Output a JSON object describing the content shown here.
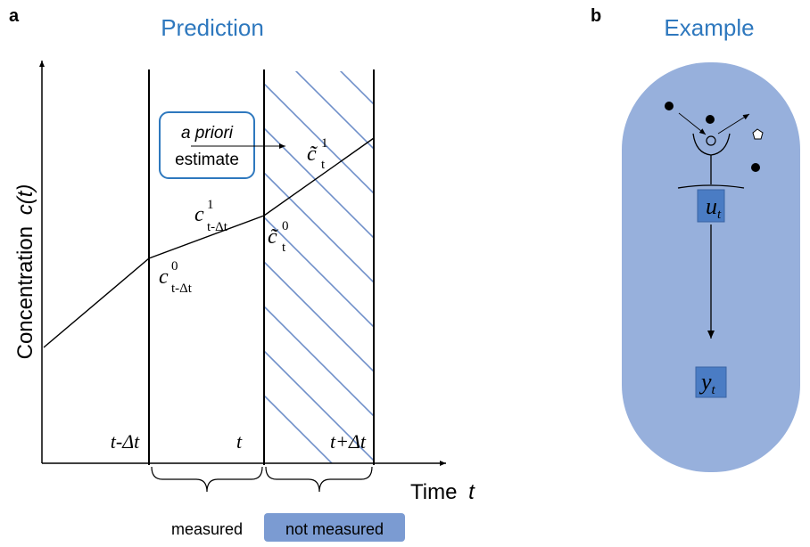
{
  "panel_a": {
    "label": "a",
    "title": "Prediction",
    "y_axis_label": "Concentration",
    "y_axis_symbol": "c(t)",
    "x_axis_label": "Time",
    "x_axis_symbol": "t",
    "ticks": {
      "t_minus": "t-Δt",
      "t": "t",
      "t_plus": "t+Δt"
    },
    "callout": {
      "line1": "a priori",
      "line2": "estimate"
    },
    "points": {
      "c0_prev": {
        "base": "c",
        "sup": "0",
        "sub": "t-Δt"
      },
      "c1_prev": {
        "base": "c",
        "sup": "1",
        "sub": "t-Δt"
      },
      "c0_tilde": {
        "base": "c̃",
        "sup": "0",
        "sub": "t"
      },
      "c1_tilde": {
        "base": "c̃",
        "sup": "1",
        "sub": "t"
      }
    },
    "braces": {
      "measured": "measured",
      "not_measured": "not measured"
    },
    "colors": {
      "title": "#2e78be",
      "hatch": "#6f8fc9",
      "callout_border": "#2e78be",
      "badge": "#7b9bd2"
    }
  },
  "panel_b": {
    "label": "b",
    "title": "Example",
    "input_label": {
      "base": "u",
      "sub": "t"
    },
    "output_label": {
      "base": "y",
      "sub": "t"
    },
    "colors": {
      "title": "#2e78be",
      "cell": "#97b0dc",
      "box": "#4a7cc4"
    }
  }
}
